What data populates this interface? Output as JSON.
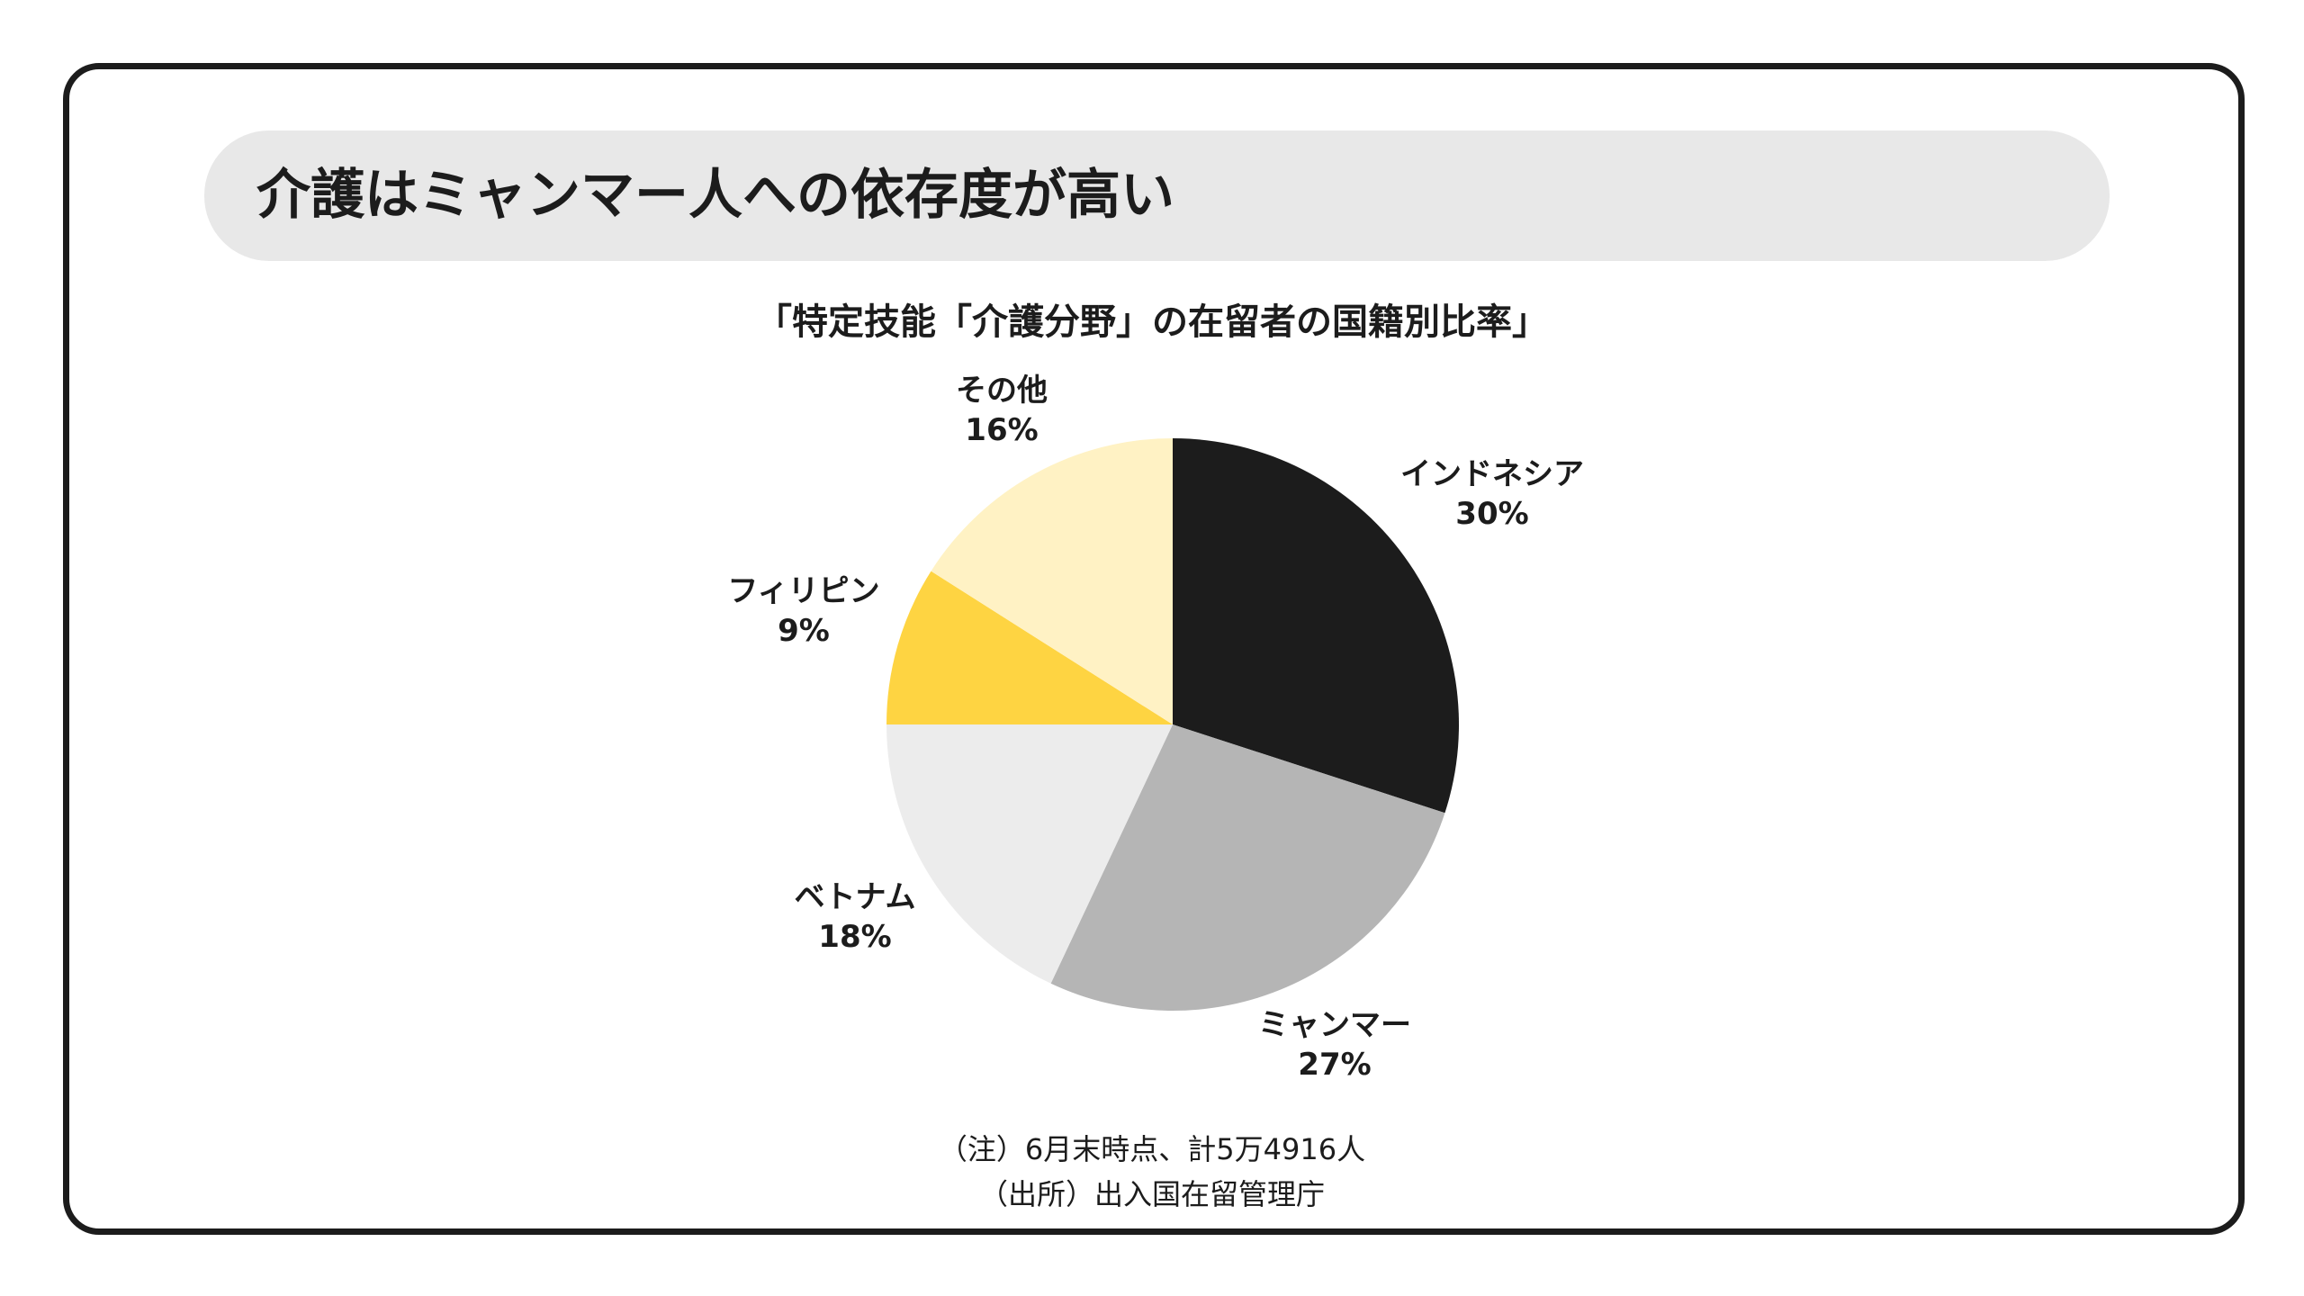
{
  "headline": "介護はミャンマー人への依存度が高い",
  "chart_data": {
    "type": "pie",
    "title": "「特定技能「介護分野」の在留者の国籍別比率」",
    "slices": [
      {
        "name": "インドネシア",
        "value": 30,
        "label": "30%",
        "color": "#1c1c1c"
      },
      {
        "name": "ミャンマー",
        "value": 27,
        "label": "27%",
        "color": "#b5b5b5"
      },
      {
        "name": "ベトナム",
        "value": 18,
        "label": "18%",
        "color": "#ececec"
      },
      {
        "name": "フィリピン",
        "value": 9,
        "label": "9%",
        "color": "#fed442"
      },
      {
        "name": "その他",
        "value": 16,
        "label": "16%",
        "color": "#fff2c4"
      }
    ]
  },
  "notes": {
    "note": "（注）6月末時点、計5万4916人",
    "source": "（出所）出入国在留管理庁"
  }
}
